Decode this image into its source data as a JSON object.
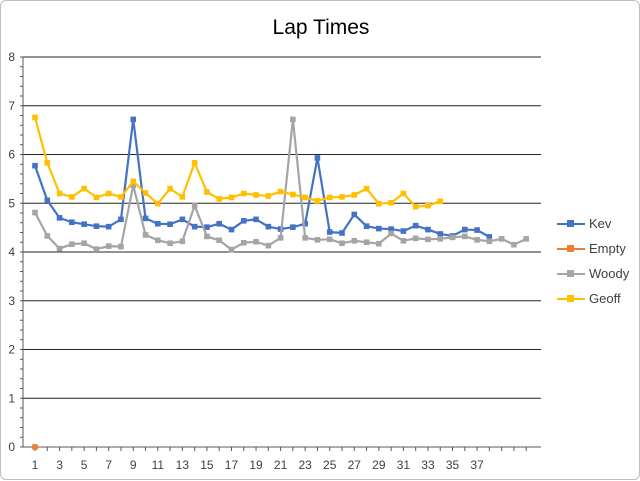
{
  "chart_data": {
    "type": "line",
    "title": "Lap Times",
    "xlabel": "",
    "ylabel": "",
    "ylim": [
      0,
      8
    ],
    "yticks": [
      0,
      1,
      2,
      3,
      4,
      5,
      6,
      7,
      8
    ],
    "xlim": [
      1,
      41
    ],
    "xtick_labels": [
      "1",
      "3",
      "5",
      "7",
      "9",
      "11",
      "13",
      "15",
      "17",
      "19",
      "21",
      "23",
      "25",
      "27",
      "29",
      "31",
      "33",
      "35",
      "37"
    ],
    "grid": "horizontal",
    "legend": "right",
    "series": [
      {
        "name": "Kev",
        "color": "#4472c4",
        "values": [
          5.77,
          5.06,
          4.7,
          4.61,
          4.57,
          4.53,
          4.52,
          4.67,
          6.72,
          4.69,
          4.58,
          4.57,
          4.67,
          4.52,
          4.51,
          4.58,
          4.46,
          4.64,
          4.67,
          4.52,
          4.47,
          4.51,
          4.58,
          5.93,
          4.41,
          4.39,
          4.77,
          4.53,
          4.48,
          4.47,
          4.43,
          4.54,
          4.46,
          4.37,
          4.33,
          4.46,
          4.45,
          4.31
        ]
      },
      {
        "name": "Empty",
        "color": "#ed7d31",
        "values": [
          0
        ]
      },
      {
        "name": "Woody",
        "color": "#a5a5a5",
        "values": [
          4.81,
          4.33,
          4.07,
          4.16,
          4.18,
          4.06,
          4.12,
          4.11,
          5.37,
          4.35,
          4.24,
          4.18,
          4.22,
          4.95,
          4.32,
          4.24,
          4.05,
          4.19,
          4.21,
          4.13,
          4.29,
          6.72,
          4.29,
          4.25,
          4.26,
          4.18,
          4.23,
          4.2,
          4.17,
          4.38,
          4.23,
          4.28,
          4.26,
          4.27,
          4.3,
          4.32,
          4.25,
          4.22,
          4.27,
          4.15,
          4.27
        ]
      },
      {
        "name": "Geoff",
        "color": "#ffc000",
        "values": [
          6.76,
          5.83,
          5.2,
          5.13,
          5.3,
          5.12,
          5.2,
          5.13,
          5.45,
          5.21,
          4.99,
          5.3,
          5.13,
          5.83,
          5.23,
          5.09,
          5.12,
          5.2,
          5.17,
          5.15,
          5.24,
          5.18,
          5.12,
          5.05,
          5.12,
          5.13,
          5.17,
          5.3,
          4.99,
          5.01,
          5.2,
          4.93,
          4.95,
          5.04
        ]
      }
    ]
  }
}
